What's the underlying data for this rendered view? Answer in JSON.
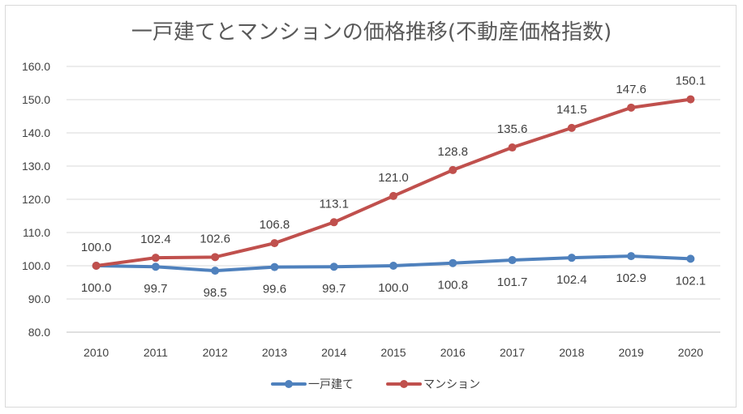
{
  "chart_data": {
    "type": "line",
    "title": "一戸建てとマンションの価格推移(不動産価格指数)",
    "xlabel": "",
    "ylabel": "",
    "categories": [
      "2010",
      "2011",
      "2012",
      "2013",
      "2014",
      "2015",
      "2016",
      "2017",
      "2018",
      "2019",
      "2020"
    ],
    "ylim": [
      80,
      160
    ],
    "yticks": [
      "80.0",
      "90.0",
      "100.0",
      "110.0",
      "120.0",
      "130.0",
      "140.0",
      "150.0",
      "160.0"
    ],
    "grid": true,
    "legend": "bottom",
    "series": [
      {
        "name": "一戸建て",
        "color": "#4f81bd",
        "values": [
          100.0,
          99.7,
          98.5,
          99.6,
          99.7,
          100.0,
          100.8,
          101.7,
          102.4,
          102.9,
          102.1
        ],
        "labels": [
          "100.0",
          "99.7",
          "98.5",
          "99.6",
          "99.7",
          "100.0",
          "100.8",
          "101.7",
          "102.4",
          "102.9",
          "102.1"
        ],
        "label_position": "below"
      },
      {
        "name": "マンション",
        "color": "#c0504d",
        "values": [
          100.0,
          102.4,
          102.6,
          106.8,
          113.1,
          121.0,
          128.8,
          135.6,
          141.5,
          147.6,
          150.1
        ],
        "labels": [
          "100.0",
          "102.4",
          "102.6",
          "106.8",
          "113.1",
          "121.0",
          "128.8",
          "135.6",
          "141.5",
          "147.6",
          "150.1"
        ],
        "label_position": "above"
      }
    ]
  }
}
